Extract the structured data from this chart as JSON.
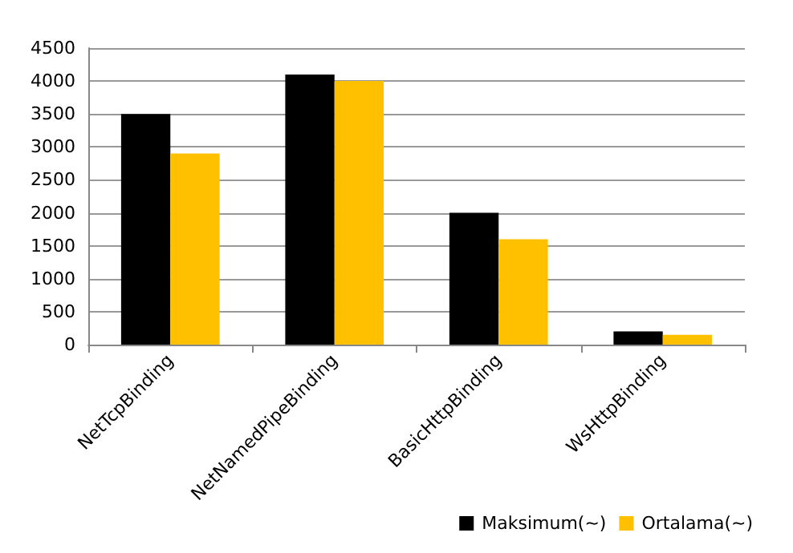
{
  "chart_data": {
    "type": "bar",
    "categories": [
      "NetTcpBinding",
      "NetNamedPipeBinding",
      "BasicHttpBinding",
      "WsHttpBinding"
    ],
    "series": [
      {
        "name": "Maksimum(~)",
        "color": "#000000",
        "values": [
          3500,
          4100,
          2000,
          200
        ]
      },
      {
        "name": "Ortalama(~)",
        "color": "#ffc000",
        "values": [
          2900,
          4000,
          1600,
          150
        ]
      }
    ],
    "ylim": [
      0,
      4500
    ],
    "yticks": [
      0,
      500,
      1000,
      1500,
      2000,
      2500,
      3000,
      3500,
      4000,
      4500
    ],
    "grid": "y",
    "legend": "bottom right"
  }
}
